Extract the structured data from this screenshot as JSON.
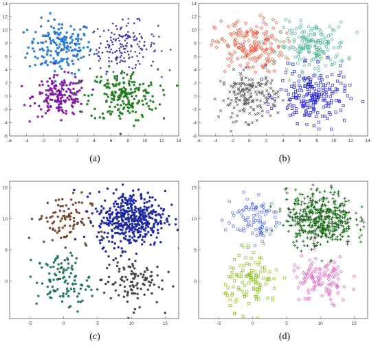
{
  "chart_data": [
    {
      "type": "scatter",
      "label": "(a)",
      "xticks": [
        "-6",
        "-4",
        "-2",
        "0",
        "2",
        "4",
        "6",
        "8",
        "10",
        "12",
        "14"
      ],
      "yticks": [
        "-6",
        "-4",
        "-2",
        "0",
        "2",
        "4",
        "6",
        "8",
        "10",
        "12",
        "14"
      ],
      "xlim": [
        -6,
        14
      ],
      "ylim": [
        -6,
        14
      ],
      "series": [
        {
          "color": "#1e90ff",
          "marker": "dot-outline",
          "center": [
            0,
            7.5
          ],
          "spread": [
            1.9,
            2.0
          ],
          "n": 180
        },
        {
          "color": "#3a3aa8",
          "marker": "dot",
          "center": [
            7.5,
            7.5
          ],
          "spread": [
            2.0,
            1.8
          ],
          "n": 170
        },
        {
          "color": "#9b16c8",
          "marker": "dot-outline",
          "center": [
            0,
            0
          ],
          "spread": [
            1.6,
            1.5
          ],
          "n": 170
        },
        {
          "color": "#1e9a1e",
          "marker": "dot-outline",
          "center": [
            7.5,
            0
          ],
          "spread": [
            2.0,
            2.0
          ],
          "n": 200
        }
      ],
      "grid": false
    },
    {
      "type": "scatter",
      "label": "(b)",
      "xticks": [
        "-6",
        "-4",
        "-2",
        "0",
        "2",
        "4",
        "6",
        "8",
        "10",
        "12",
        "14"
      ],
      "yticks": [
        "-6",
        "-4",
        "-2",
        "0",
        "2",
        "4",
        "6",
        "8",
        "10",
        "12",
        "14"
      ],
      "xlim": [
        -6,
        14
      ],
      "ylim": [
        -6,
        14
      ],
      "series": [
        {
          "color": "#e8583c",
          "marker": "diamond",
          "center": [
            0,
            7.5
          ],
          "spread": [
            2.0,
            2.0
          ],
          "n": 180
        },
        {
          "color": "#3aaa88",
          "marker": "circle",
          "center": [
            7.5,
            7.5
          ],
          "spread": [
            2.0,
            1.8
          ],
          "n": 170
        },
        {
          "color": "#5a5a5a",
          "marker": "x",
          "center": [
            0,
            0
          ],
          "spread": [
            1.7,
            1.8
          ],
          "n": 170
        },
        {
          "color": "#2020d0",
          "marker": "square",
          "center": [
            7.5,
            0
          ],
          "spread": [
            2.0,
            2.0
          ],
          "n": 200
        }
      ],
      "grid": false
    },
    {
      "type": "scatter",
      "label": "(c)",
      "xticks": [
        "-5",
        "0",
        "5",
        "10",
        "15"
      ],
      "yticks": [
        "0",
        "5",
        "10",
        "15"
      ],
      "xlim": [
        -8,
        17
      ],
      "ylim": [
        -6,
        16
      ],
      "series": [
        {
          "color": "#8b4a2a",
          "marker": "dot-outline",
          "center": [
            0,
            10
          ],
          "spread": [
            2.0,
            2.0
          ],
          "n": 90
        },
        {
          "color": "#1a2ac8",
          "marker": "dot-outline",
          "center": [
            10,
            10
          ],
          "spread": [
            2.5,
            2.2
          ],
          "n": 450
        },
        {
          "color": "#1a8a5a",
          "marker": "dot-outline",
          "center": [
            0,
            0
          ],
          "spread": [
            2.0,
            2.2
          ],
          "n": 110
        },
        {
          "color": "#4a4a4a",
          "marker": "dot-outline",
          "center": [
            10,
            0
          ],
          "spread": [
            2.2,
            2.0
          ],
          "n": 110
        }
      ],
      "grid": false
    },
    {
      "type": "scatter",
      "label": "(d)",
      "xticks": [
        "-5",
        "0",
        "5",
        "10",
        "15"
      ],
      "yticks": [
        "0",
        "5",
        "10",
        "15"
      ],
      "xlim": [
        -8,
        17
      ],
      "ylim": [
        -6,
        16
      ],
      "series": [
        {
          "color": "#4060e0",
          "marker": "circle",
          "center": [
            0,
            10
          ],
          "spread": [
            2.0,
            2.0
          ],
          "n": 90
        },
        {
          "color": "#1a6a1a",
          "marker": "plus",
          "center": [
            10,
            10
          ],
          "spread": [
            2.5,
            2.2
          ],
          "n": 450
        },
        {
          "color": "#88c018",
          "marker": "square",
          "center": [
            0,
            0
          ],
          "spread": [
            2.0,
            2.2
          ],
          "n": 110
        },
        {
          "color": "#e060c0",
          "marker": "diamond",
          "center": [
            10,
            0
          ],
          "spread": [
            2.2,
            2.0
          ],
          "n": 110
        }
      ],
      "grid": false
    }
  ]
}
